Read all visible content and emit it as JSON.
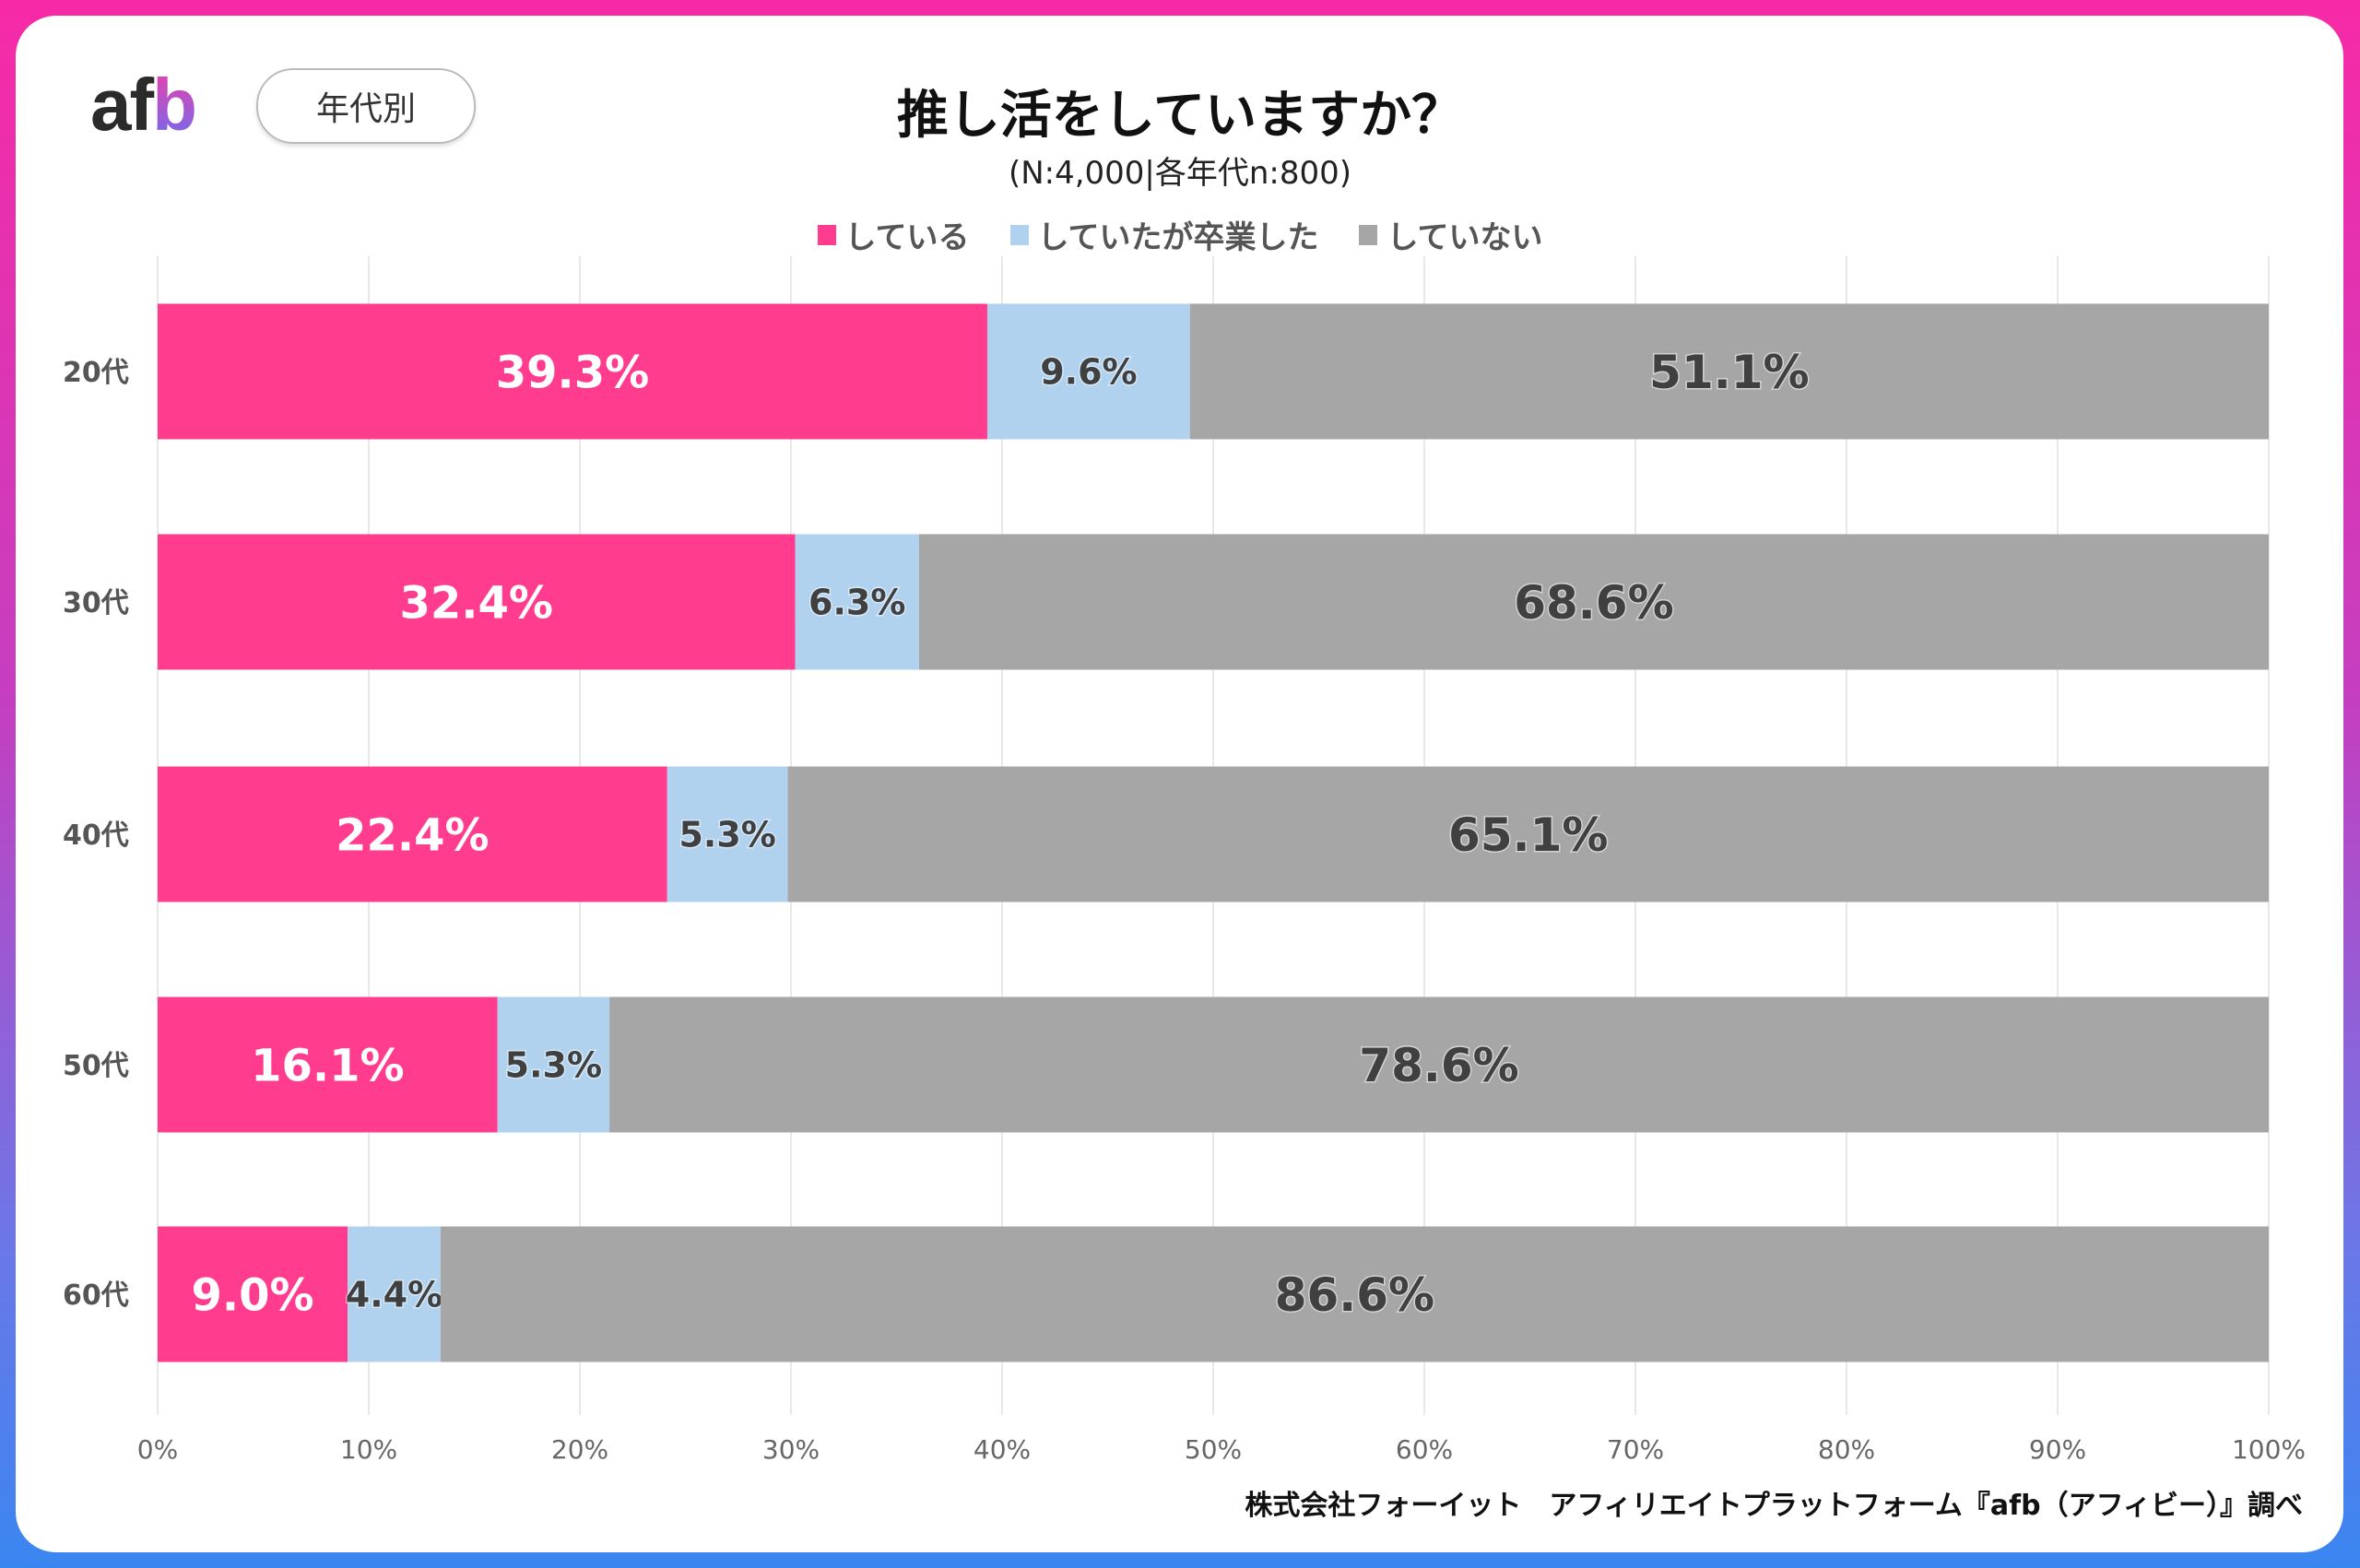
{
  "header": {
    "logo": "afb",
    "badge": "年代別"
  },
  "footer": "株式会社フォーイット　アフィリエイトプラットフォーム『afb（アフィビー）』調べ",
  "chart_data": {
    "type": "bar",
    "orientation": "horizontal",
    "stacked": "100%",
    "title": "推し活をしていますか？",
    "subtitle": "(N:4,000|各年代n:800)",
    "categories": [
      "20代",
      "30代",
      "40代",
      "50代",
      "60代"
    ],
    "series": [
      {
        "name": "している",
        "color": "#ff3c8e",
        "values": [
          39.3,
          32.4,
          22.4,
          16.1,
          9.0
        ]
      },
      {
        "name": "していたが卒業した",
        "color": "#b0d2ee",
        "values": [
          9.6,
          6.3,
          5.3,
          5.3,
          4.4
        ]
      },
      {
        "name": "していない",
        "color": "#a6a6a6",
        "values": [
          51.1,
          68.6,
          65.1,
          78.6,
          86.6
        ]
      }
    ],
    "xticks": [
      "0%",
      "10%",
      "20%",
      "30%",
      "40%",
      "50%",
      "60%",
      "70%",
      "80%",
      "90%",
      "100%"
    ],
    "xlim": [
      0,
      100
    ],
    "grid": true,
    "legend": "top"
  }
}
